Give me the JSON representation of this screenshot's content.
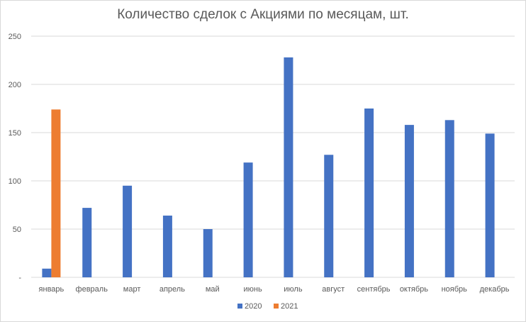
{
  "chart_data": {
    "type": "bar",
    "title": "Количество сделок с Акциями по месяцам, шт.",
    "categories": [
      "январь",
      "февраль",
      "март",
      "апрель",
      "май",
      "июнь",
      "июль",
      "август",
      "сентябрь",
      "октябрь",
      "ноябрь",
      "декабрь"
    ],
    "series": [
      {
        "name": "2020",
        "color": "#4472c4",
        "values": [
          9,
          72,
          95,
          64,
          50,
          119,
          228,
          127,
          175,
          158,
          163,
          149
        ]
      },
      {
        "name": "2021",
        "color": "#ed7d31",
        "values": [
          174,
          null,
          null,
          null,
          null,
          null,
          null,
          null,
          null,
          null,
          null,
          null
        ]
      }
    ],
    "ylim": [
      0,
      250
    ],
    "yticks": [
      "-",
      "50",
      "100",
      "150",
      "200",
      "250"
    ],
    "grid": true,
    "legend": "bottom"
  }
}
